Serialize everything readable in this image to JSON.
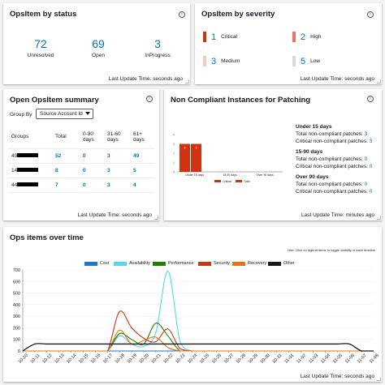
{
  "status": {
    "title": "OpsItem by status",
    "items": [
      {
        "value": "72",
        "label": "Unresolved"
      },
      {
        "value": "69",
        "label": "Open"
      },
      {
        "value": "3",
        "label": "InProgress"
      }
    ],
    "footer": "Last Update Time: seconds ago"
  },
  "severity": {
    "title": "OpsItem by severity",
    "items": [
      {
        "value": "1",
        "label": "Critical",
        "color": "#d13212"
      },
      {
        "value": "2",
        "label": "High",
        "color": "#ec7266"
      },
      {
        "value": "3",
        "label": "Medium",
        "color": "#f5c9c1"
      },
      {
        "value": "5",
        "label": "Low",
        "color": "#d5dbdb"
      }
    ],
    "footer": "Last Update Time: seconds ago"
  },
  "summary": {
    "title": "Open OpsItem summary",
    "group_by_label": "Group By",
    "group_by_value": "Source Account Id",
    "headers": [
      "Groups",
      "Total",
      "0-30 days",
      "31-60 days",
      "61+ days"
    ],
    "rows": [
      {
        "group": "49",
        "total": "52",
        "d0": "0",
        "d31": "3",
        "d61": "49"
      },
      {
        "group": "14",
        "total": "8",
        "d0": "0",
        "d31": "3",
        "d61": "5"
      },
      {
        "group": "44",
        "total": "7",
        "d0": "0",
        "d31": "3",
        "d61": "4"
      }
    ],
    "footer": "Last Update Time: seconds ago"
  },
  "noncompliant": {
    "title": "Non Compliant Instances for Patching",
    "groups": [
      {
        "heading": "Under 15 days",
        "total_label": "Total non-compliant patches:",
        "total": "3",
        "critical_label": "Critical non-compliant patches:",
        "critical": "3"
      },
      {
        "heading": "15-90 days",
        "total_label": "Total non-compliant patches:",
        "total": "0",
        "critical_label": "Critical non-compliant patches:",
        "critical": "0"
      },
      {
        "heading": "Over 90 days",
        "total_label": "Total non-compliant patches:",
        "total": "0",
        "critical_label": "Critical non-compliant patches:",
        "critical": "0"
      }
    ],
    "mini_chart": {
      "type": "bar",
      "categories": [
        "Under 15 days",
        "15-90 days",
        "Over 90 days"
      ],
      "series": [
        {
          "name": "Critical",
          "values": [
            3,
            0,
            0
          ],
          "color": "#d13212"
        },
        {
          "name": "Total",
          "values": [
            3,
            0,
            0
          ],
          "color": "#d13212"
        }
      ],
      "yticks": [
        "4",
        "3",
        "2",
        "1",
        "0"
      ]
    },
    "footer": "Last Update Time: minutes ago"
  },
  "opsitems": {
    "title": "Ops items over time",
    "hint": "Hint: Click on legend items to toggle visibility of each timeline",
    "footer": "Last Update Time: seconds ago"
  },
  "chart_data": {
    "type": "line",
    "x": [
      "10-10",
      "10-11",
      "10-12",
      "10-13",
      "10-14",
      "10-15",
      "10-16",
      "10-17",
      "10-18",
      "10-19",
      "10-20",
      "10-21",
      "10-22",
      "10-23",
      "10-24",
      "10-25",
      "10-26",
      "10-27",
      "10-28",
      "10-29",
      "10-30",
      "10-31",
      "11-01",
      "11-02",
      "11-03",
      "11-04",
      "11-05",
      "11-06",
      "11-07",
      "11-08"
    ],
    "ylim": [
      0,
      700
    ],
    "yticks": [
      0,
      100,
      200,
      300,
      400,
      500,
      600,
      700
    ],
    "series": [
      {
        "name": "Cost",
        "color": "#1f77c9",
        "values": [
          0,
          0,
          0,
          0,
          0,
          0,
          0,
          0,
          0,
          0,
          0,
          0,
          0,
          0,
          0,
          0,
          0,
          0,
          0,
          0,
          0,
          0,
          0,
          0,
          0,
          0,
          0,
          0,
          0,
          0
        ]
      },
      {
        "name": "Availability",
        "color": "#4dd9f3",
        "values": [
          0,
          0,
          0,
          0,
          0,
          0,
          0,
          0,
          130,
          60,
          40,
          160,
          690,
          80,
          0,
          0,
          0,
          0,
          0,
          0,
          0,
          0,
          0,
          0,
          0,
          0,
          0,
          0,
          0,
          0
        ]
      },
      {
        "name": "Performance",
        "color": "#1d8102",
        "values": [
          0,
          0,
          0,
          0,
          0,
          0,
          0,
          0,
          150,
          100,
          60,
          240,
          130,
          0,
          0,
          0,
          0,
          0,
          0,
          0,
          0,
          0,
          0,
          0,
          0,
          0,
          0,
          0,
          0,
          0
        ]
      },
      {
        "name": "Security",
        "color": "#d13212",
        "values": [
          0,
          0,
          0,
          0,
          0,
          0,
          0,
          0,
          340,
          200,
          110,
          80,
          190,
          20,
          0,
          0,
          0,
          0,
          0,
          0,
          0,
          0,
          0,
          0,
          0,
          0,
          0,
          0,
          0,
          0
        ]
      },
      {
        "name": "Recovery",
        "color": "#ec7211",
        "values": [
          0,
          0,
          0,
          0,
          0,
          0,
          0,
          0,
          180,
          60,
          90,
          120,
          30,
          0,
          0,
          0,
          0,
          0,
          0,
          0,
          0,
          0,
          0,
          0,
          0,
          0,
          0,
          0,
          0,
          0
        ]
      },
      {
        "name": "Other",
        "color": "#16191f",
        "values": [
          0,
          60,
          60,
          60,
          60,
          60,
          60,
          60,
          60,
          60,
          60,
          60,
          60,
          60,
          60,
          60,
          60,
          60,
          60,
          60,
          60,
          60,
          60,
          60,
          60,
          60,
          60,
          60,
          0,
          0
        ]
      }
    ]
  }
}
